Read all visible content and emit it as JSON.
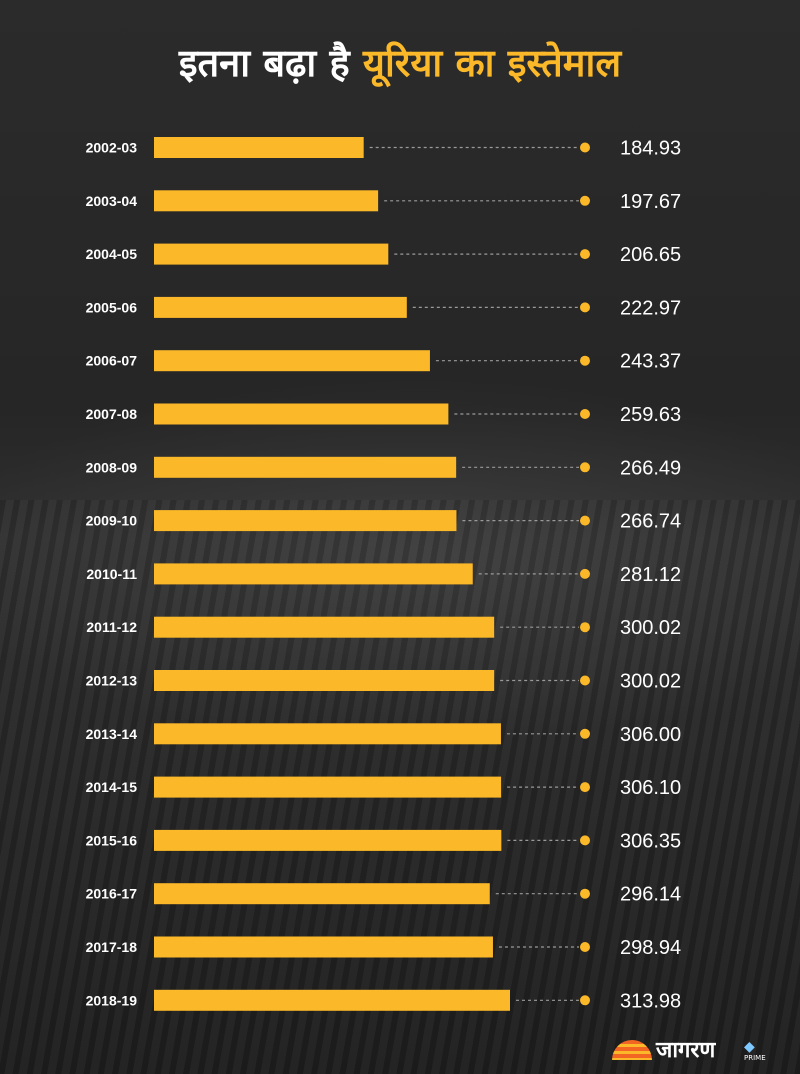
{
  "title": {
    "part1": "इतना बढ़ा है",
    "part2": "यूरिया का इस्तेमाल"
  },
  "chart_data": {
    "type": "bar",
    "orientation": "horizontal",
    "categories": [
      "2002-03",
      "2003-04",
      "2004-05",
      "2005-06",
      "2006-07",
      "2007-08",
      "2008-09",
      "2009-10",
      "2010-11",
      "2011-12",
      "2012-13",
      "2013-14",
      "2014-15",
      "2015-16",
      "2016-17",
      "2017-18",
      "2018-19"
    ],
    "values": [
      184.93,
      197.67,
      206.65,
      222.97,
      243.37,
      259.63,
      266.49,
      266.74,
      281.12,
      300.02,
      300.02,
      306.0,
      306.1,
      306.35,
      296.14,
      298.94,
      313.98
    ],
    "value_labels": [
      "184.93",
      "197.67",
      "206.65",
      "222.97",
      "243.37",
      "259.63",
      "266.49",
      "266.74",
      "281.12",
      "300.02",
      "300.02",
      "306.00",
      "306.10",
      "306.35",
      "296.14",
      "298.94",
      "313.98"
    ],
    "xlim": [
      0,
      520
    ]
  },
  "colors": {
    "bar": "#fbb829",
    "dot": "#fbb829",
    "leader": "#9a9a9a",
    "text": "#ffffff"
  },
  "branding": {
    "logo_text": "जागरण",
    "sub": "PRIME"
  }
}
